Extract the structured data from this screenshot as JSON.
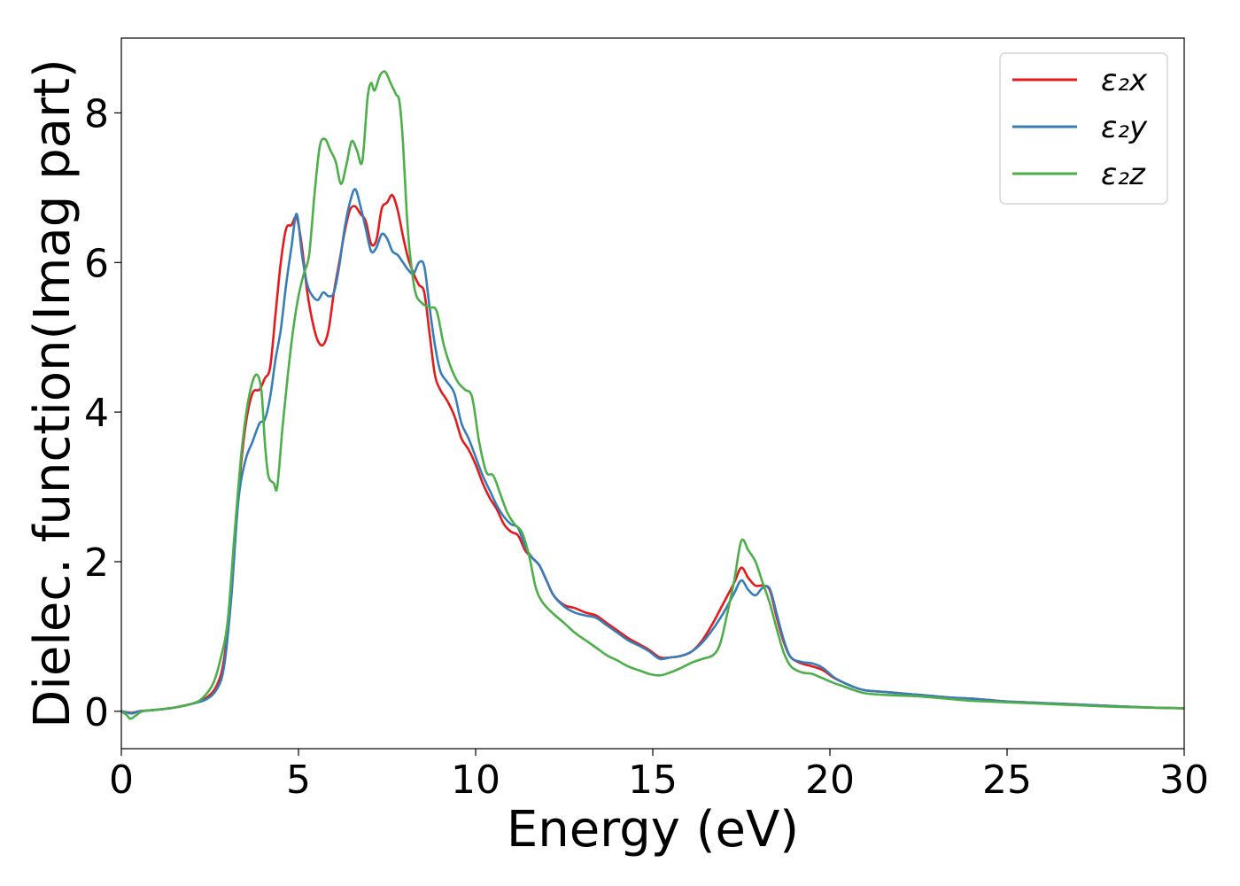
{
  "chart_data": {
    "type": "line",
    "title": "",
    "xlabel": "Energy (eV)",
    "ylabel": "Dielec. function(Imag part)",
    "xlim": [
      0,
      30
    ],
    "ylim": [
      -0.5,
      9.0
    ],
    "xticks": [
      0,
      5,
      10,
      15,
      20,
      25,
      30
    ],
    "yticks": [
      0,
      2,
      4,
      6,
      8
    ],
    "legend_position": "top-right",
    "grid": false,
    "series": [
      {
        "name": "ε₂x",
        "color": "#e41a1c",
        "x": [
          0,
          0.3,
          0.5,
          1.0,
          1.5,
          2.0,
          2.4,
          2.7,
          2.9,
          3.1,
          3.3,
          3.5,
          3.7,
          3.9,
          4.05,
          4.2,
          4.35,
          4.5,
          4.65,
          4.8,
          4.95,
          5.1,
          5.25,
          5.4,
          5.55,
          5.7,
          5.85,
          6.0,
          6.15,
          6.3,
          6.45,
          6.6,
          6.75,
          6.9,
          7.05,
          7.2,
          7.35,
          7.5,
          7.65,
          7.8,
          7.95,
          8.1,
          8.25,
          8.4,
          8.55,
          8.7,
          8.85,
          9.0,
          9.2,
          9.4,
          9.6,
          9.8,
          10.0,
          10.2,
          10.4,
          10.6,
          10.8,
          11.0,
          11.2,
          11.4,
          11.6,
          11.8,
          12.0,
          12.2,
          12.5,
          12.8,
          13.1,
          13.4,
          13.7,
          14.0,
          14.3,
          14.6,
          14.9,
          15.2,
          15.5,
          15.8,
          16.1,
          16.4,
          16.7,
          17.0,
          17.3,
          17.5,
          17.7,
          17.9,
          18.1,
          18.3,
          18.5,
          18.7,
          18.9,
          19.2,
          19.5,
          19.8,
          20.1,
          20.4,
          20.7,
          21.0,
          21.5,
          22.0,
          22.5,
          23.0,
          23.5,
          24.0,
          24.5,
          25.0,
          26.0,
          27.0,
          28.0,
          29.0,
          30.0
        ],
        "y": [
          0.0,
          -0.02,
          0.0,
          0.02,
          0.05,
          0.1,
          0.18,
          0.35,
          0.7,
          1.6,
          2.9,
          3.8,
          4.25,
          4.3,
          4.45,
          4.6,
          5.3,
          6.0,
          6.45,
          6.5,
          6.6,
          6.2,
          5.6,
          5.2,
          4.95,
          4.9,
          5.1,
          5.6,
          6.0,
          6.4,
          6.7,
          6.75,
          6.65,
          6.55,
          6.25,
          6.3,
          6.72,
          6.8,
          6.9,
          6.7,
          6.35,
          6.05,
          5.85,
          5.7,
          5.6,
          5.05,
          4.5,
          4.3,
          4.15,
          3.95,
          3.65,
          3.5,
          3.3,
          3.05,
          2.85,
          2.7,
          2.5,
          2.4,
          2.35,
          2.15,
          2.05,
          1.95,
          1.75,
          1.55,
          1.42,
          1.38,
          1.32,
          1.28,
          1.18,
          1.08,
          0.98,
          0.9,
          0.82,
          0.72,
          0.72,
          0.74,
          0.8,
          0.95,
          1.18,
          1.45,
          1.72,
          1.92,
          1.78,
          1.68,
          1.68,
          1.62,
          1.25,
          0.92,
          0.72,
          0.64,
          0.6,
          0.55,
          0.45,
          0.38,
          0.32,
          0.28,
          0.26,
          0.24,
          0.22,
          0.2,
          0.18,
          0.17,
          0.15,
          0.13,
          0.11,
          0.09,
          0.07,
          0.05,
          0.04
        ]
      },
      {
        "name": "ε₂y",
        "color": "#377eb8",
        "x": [
          0,
          0.3,
          0.5,
          1.0,
          1.5,
          2.0,
          2.4,
          2.7,
          2.9,
          3.1,
          3.3,
          3.5,
          3.7,
          3.9,
          4.05,
          4.2,
          4.35,
          4.5,
          4.65,
          4.8,
          4.95,
          5.1,
          5.25,
          5.4,
          5.55,
          5.7,
          5.85,
          6.0,
          6.15,
          6.3,
          6.45,
          6.6,
          6.75,
          6.9,
          7.05,
          7.2,
          7.35,
          7.5,
          7.65,
          7.8,
          7.95,
          8.1,
          8.25,
          8.4,
          8.55,
          8.7,
          8.85,
          9.0,
          9.2,
          9.4,
          9.6,
          9.8,
          10.0,
          10.2,
          10.4,
          10.6,
          10.8,
          11.0,
          11.2,
          11.4,
          11.6,
          11.8,
          12.0,
          12.2,
          12.5,
          12.8,
          13.1,
          13.4,
          13.7,
          14.0,
          14.3,
          14.6,
          14.9,
          15.2,
          15.5,
          15.8,
          16.1,
          16.4,
          16.7,
          17.0,
          17.3,
          17.5,
          17.7,
          17.9,
          18.1,
          18.3,
          18.5,
          18.7,
          18.9,
          19.2,
          19.5,
          19.8,
          20.1,
          20.4,
          20.7,
          21.0,
          21.5,
          22.0,
          22.5,
          23.0,
          23.5,
          24.0,
          24.5,
          25.0,
          26.0,
          27.0,
          28.0,
          29.0,
          30.0
        ],
        "y": [
          0.0,
          -0.03,
          0.0,
          0.02,
          0.05,
          0.1,
          0.16,
          0.3,
          0.6,
          1.5,
          2.8,
          3.35,
          3.6,
          3.85,
          3.9,
          4.2,
          4.7,
          5.1,
          5.7,
          6.2,
          6.65,
          6.1,
          5.7,
          5.55,
          5.5,
          5.6,
          5.55,
          5.6,
          5.95,
          6.45,
          6.8,
          6.98,
          6.75,
          6.45,
          6.15,
          6.2,
          6.38,
          6.32,
          6.15,
          6.1,
          6.0,
          5.9,
          5.85,
          6.0,
          5.95,
          5.4,
          4.9,
          4.55,
          4.4,
          4.25,
          3.85,
          3.65,
          3.4,
          3.15,
          2.95,
          2.75,
          2.6,
          2.5,
          2.45,
          2.2,
          2.05,
          1.95,
          1.75,
          1.55,
          1.4,
          1.32,
          1.28,
          1.25,
          1.15,
          1.05,
          0.95,
          0.88,
          0.8,
          0.7,
          0.72,
          0.74,
          0.8,
          0.92,
          1.1,
          1.32,
          1.58,
          1.75,
          1.62,
          1.55,
          1.65,
          1.64,
          1.3,
          0.95,
          0.72,
          0.66,
          0.64,
          0.58,
          0.46,
          0.38,
          0.32,
          0.28,
          0.26,
          0.24,
          0.22,
          0.2,
          0.18,
          0.17,
          0.15,
          0.13,
          0.11,
          0.09,
          0.07,
          0.05,
          0.04
        ]
      },
      {
        "name": "ε₂z",
        "color": "#4daf4a",
        "x": [
          0,
          0.15,
          0.25,
          0.4,
          0.6,
          1.0,
          1.5,
          2.0,
          2.3,
          2.6,
          2.8,
          3.0,
          3.2,
          3.4,
          3.6,
          3.8,
          3.95,
          4.05,
          4.15,
          4.3,
          4.4,
          4.55,
          4.7,
          4.85,
          5.0,
          5.15,
          5.3,
          5.45,
          5.6,
          5.75,
          5.9,
          6.05,
          6.2,
          6.35,
          6.5,
          6.65,
          6.8,
          6.95,
          7.05,
          7.15,
          7.3,
          7.45,
          7.6,
          7.75,
          7.85,
          7.95,
          8.05,
          8.15,
          8.3,
          8.5,
          8.7,
          8.9,
          9.1,
          9.3,
          9.5,
          9.7,
          9.9,
          10.1,
          10.3,
          10.5,
          10.7,
          10.9,
          11.1,
          11.3,
          11.5,
          11.7,
          11.9,
          12.2,
          12.5,
          12.8,
          13.1,
          13.4,
          13.7,
          14.0,
          14.3,
          14.6,
          14.9,
          15.2,
          15.5,
          15.8,
          16.1,
          16.4,
          16.7,
          16.9,
          17.1,
          17.3,
          17.5,
          17.7,
          17.9,
          18.1,
          18.3,
          18.5,
          18.7,
          18.9,
          19.2,
          19.5,
          19.8,
          20.1,
          20.4,
          20.7,
          21.0,
          21.5,
          22.0,
          22.5,
          23.0,
          23.5,
          24.0,
          24.5,
          25.0,
          26.0,
          27.0,
          28.0,
          29.0,
          30.0
        ],
        "y": [
          0.0,
          -0.05,
          -0.1,
          -0.06,
          0.0,
          0.02,
          0.05,
          0.1,
          0.18,
          0.38,
          0.7,
          1.2,
          2.4,
          3.5,
          4.2,
          4.5,
          4.3,
          3.6,
          3.15,
          3.05,
          3.0,
          3.8,
          4.5,
          5.1,
          5.55,
          5.85,
          6.1,
          6.9,
          7.55,
          7.65,
          7.5,
          7.35,
          7.05,
          7.3,
          7.62,
          7.5,
          7.35,
          8.2,
          8.4,
          8.3,
          8.5,
          8.55,
          8.4,
          8.25,
          8.15,
          7.6,
          6.7,
          6.1,
          5.6,
          5.45,
          5.4,
          5.35,
          4.9,
          4.6,
          4.4,
          4.3,
          4.2,
          3.6,
          3.2,
          3.15,
          2.9,
          2.65,
          2.5,
          2.4,
          2.1,
          1.65,
          1.45,
          1.3,
          1.18,
          1.05,
          0.95,
          0.85,
          0.75,
          0.68,
          0.6,
          0.55,
          0.5,
          0.48,
          0.52,
          0.58,
          0.65,
          0.7,
          0.75,
          0.9,
          1.3,
          1.75,
          2.28,
          2.15,
          2.0,
          1.72,
          1.45,
          1.1,
          0.78,
          0.6,
          0.52,
          0.5,
          0.44,
          0.38,
          0.33,
          0.28,
          0.24,
          0.22,
          0.21,
          0.2,
          0.18,
          0.16,
          0.14,
          0.13,
          0.12,
          0.1,
          0.08,
          0.06,
          0.05,
          0.04
        ]
      }
    ]
  }
}
